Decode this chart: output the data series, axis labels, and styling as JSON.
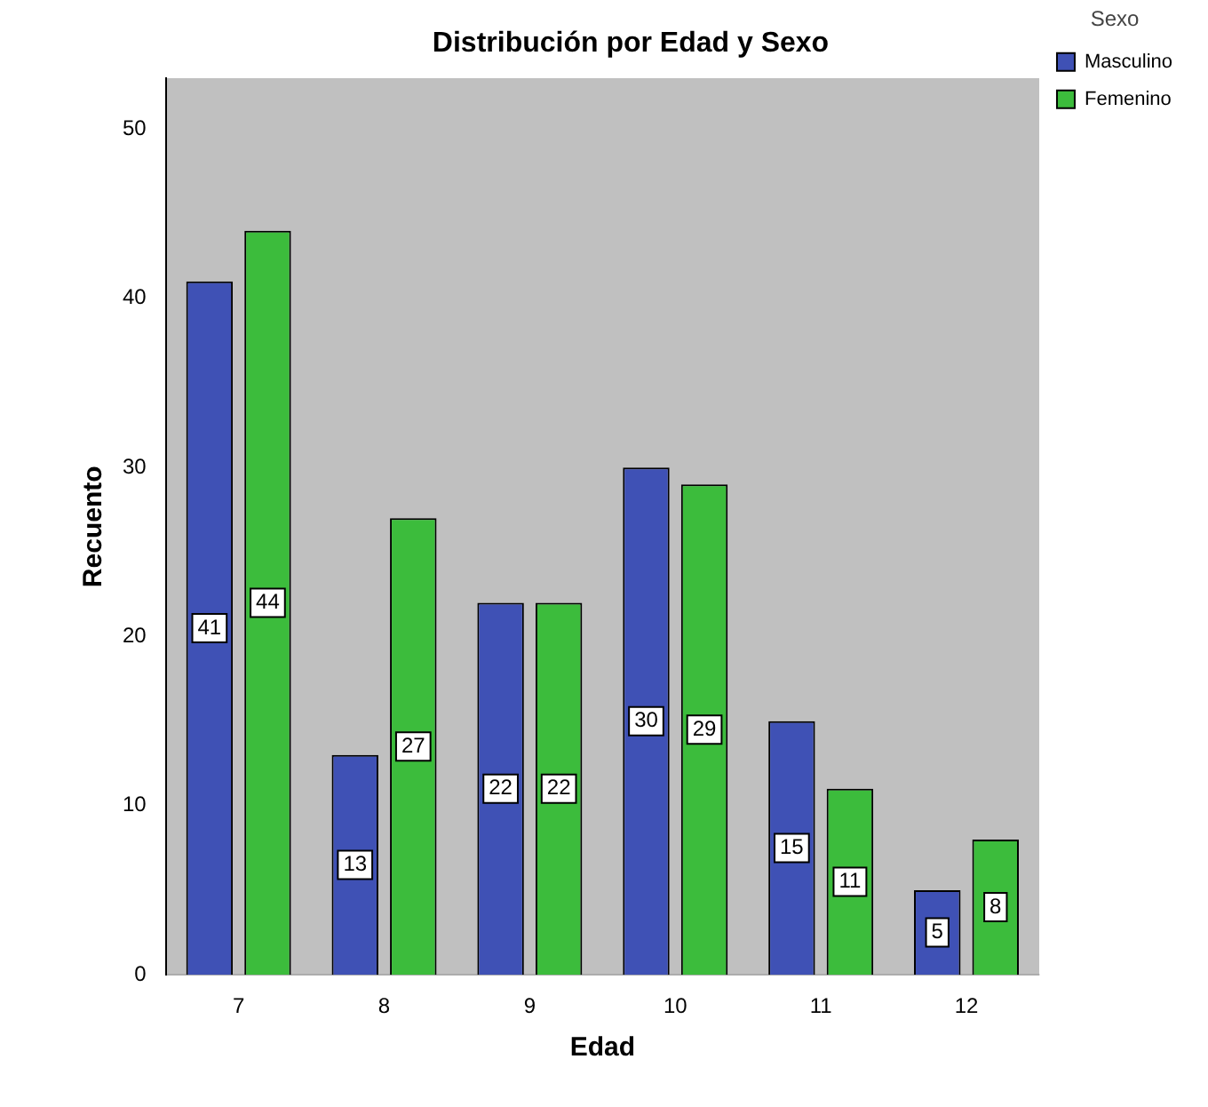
{
  "chart_data": {
    "type": "bar",
    "title": "Distribución por Edad y Sexo",
    "xlabel": "Edad",
    "ylabel": "Recuento",
    "legend_title": "Sexo",
    "categories": [
      "7",
      "8",
      "9",
      "10",
      "11",
      "12"
    ],
    "series": [
      {
        "name": "Masculino",
        "color": "#3f51b5",
        "values": [
          41,
          13,
          22,
          30,
          15,
          5
        ]
      },
      {
        "name": "Femenino",
        "color": "#3cbc3c",
        "values": [
          44,
          27,
          22,
          29,
          11,
          8
        ]
      }
    ],
    "ylim": [
      0,
      53
    ],
    "yticks": [
      0,
      10,
      20,
      30,
      40,
      50
    ],
    "grid": false,
    "legend": "top right",
    "data_labels": true
  }
}
